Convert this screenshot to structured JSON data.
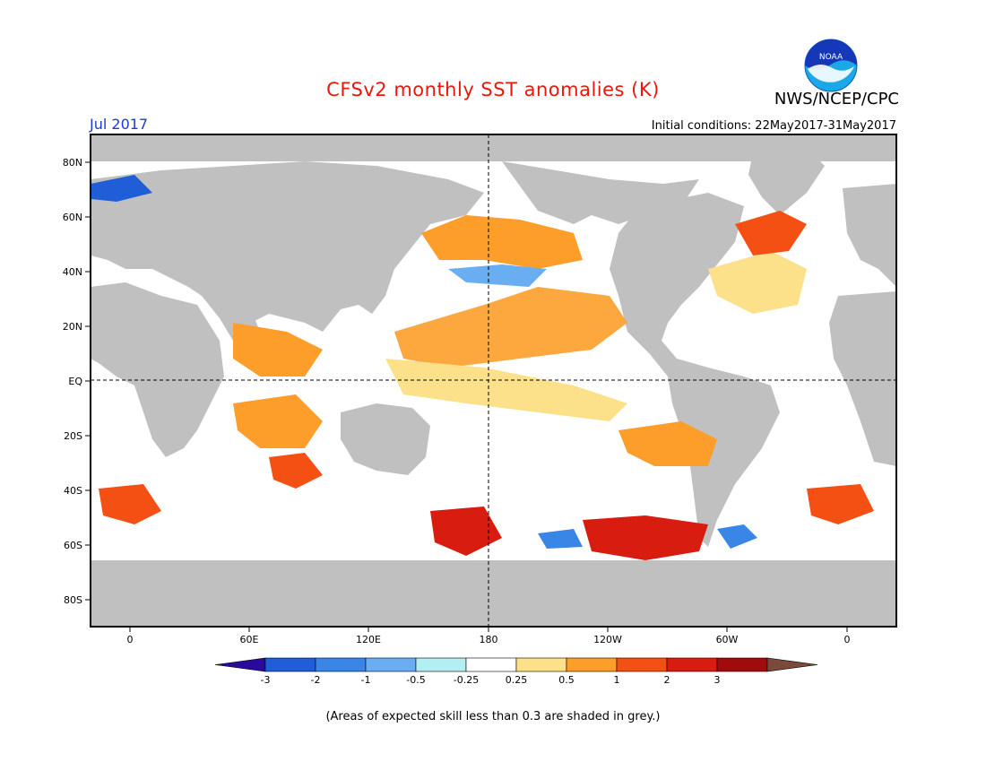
{
  "header": {
    "title": "CFSv2 monthly SST anomalies (K)",
    "agency": "NWS/NCEP/CPC",
    "month": "Jul 2017",
    "initial_conditions": "Initial conditions: 22May2017-31May2017"
  },
  "logo": {
    "text": "NOAA",
    "icon": "noaa-logo"
  },
  "map": {
    "lat_labels": [
      "80N",
      "60N",
      "40N",
      "20N",
      "EQ",
      "20S",
      "40S",
      "60S",
      "80S"
    ],
    "lon_labels": [
      "0",
      "60E",
      "120E",
      "180",
      "120W",
      "60W",
      "0"
    ],
    "land_color": "#c0c0c0",
    "reference_lines": [
      "Equator",
      "Date line 180"
    ]
  },
  "colorbar": {
    "tick_labels": [
      "-3",
      "-2",
      "-1",
      "-0.5",
      "-0.25",
      "0.25",
      "0.5",
      "1",
      "2",
      "3"
    ],
    "colors": [
      "#2a0a9b",
      "#1f5ed6",
      "#3a86e6",
      "#6aaef2",
      "#b3eef2",
      "#ffffff",
      "#fde08a",
      "#fd9e2a",
      "#f45014",
      "#d81c0f",
      "#a00c0c",
      "#7a4a3a"
    ]
  },
  "footnote": "(Areas of expected skill less than 0.3 are shaded in grey.)"
}
